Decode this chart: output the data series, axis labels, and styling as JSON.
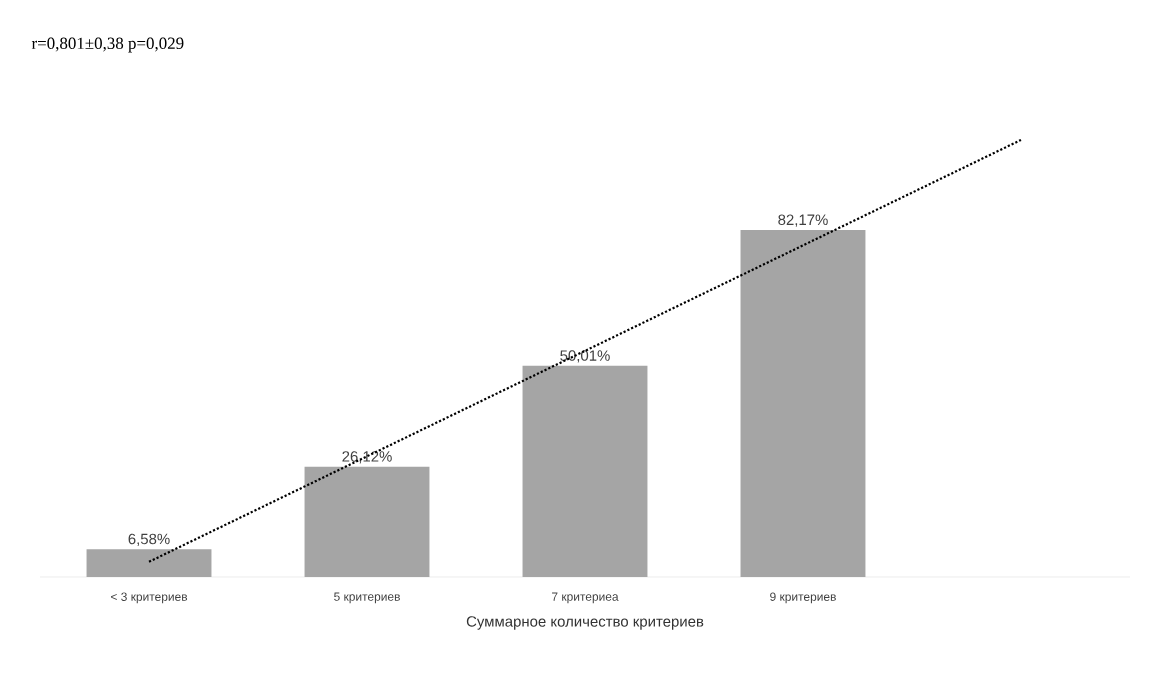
{
  "chart_data": {
    "type": "bar",
    "categories": [
      "< 3 критериев",
      "5 критериев",
      "7 критериеа",
      "9 критериев",
      null
    ],
    "xlabel": "Суммарное количество критериев",
    "annotations": [
      "r=0,801±0,38 p=0,029"
    ],
    "series": [
      {
        "color": "#a5a5a5",
        "values": [
          6.58,
          26.12,
          50.01,
          82.17,
          null
        ],
        "value_labels": [
          "6,58%",
          "26,12%",
          "50,01%",
          "82,17%",
          null
        ]
      },
      {
        "type": "line",
        "color": "#000000",
        "line_style": "dotted",
        "values": [
          3.6,
          null,
          null,
          null,
          103.5
        ]
      }
    ]
  }
}
